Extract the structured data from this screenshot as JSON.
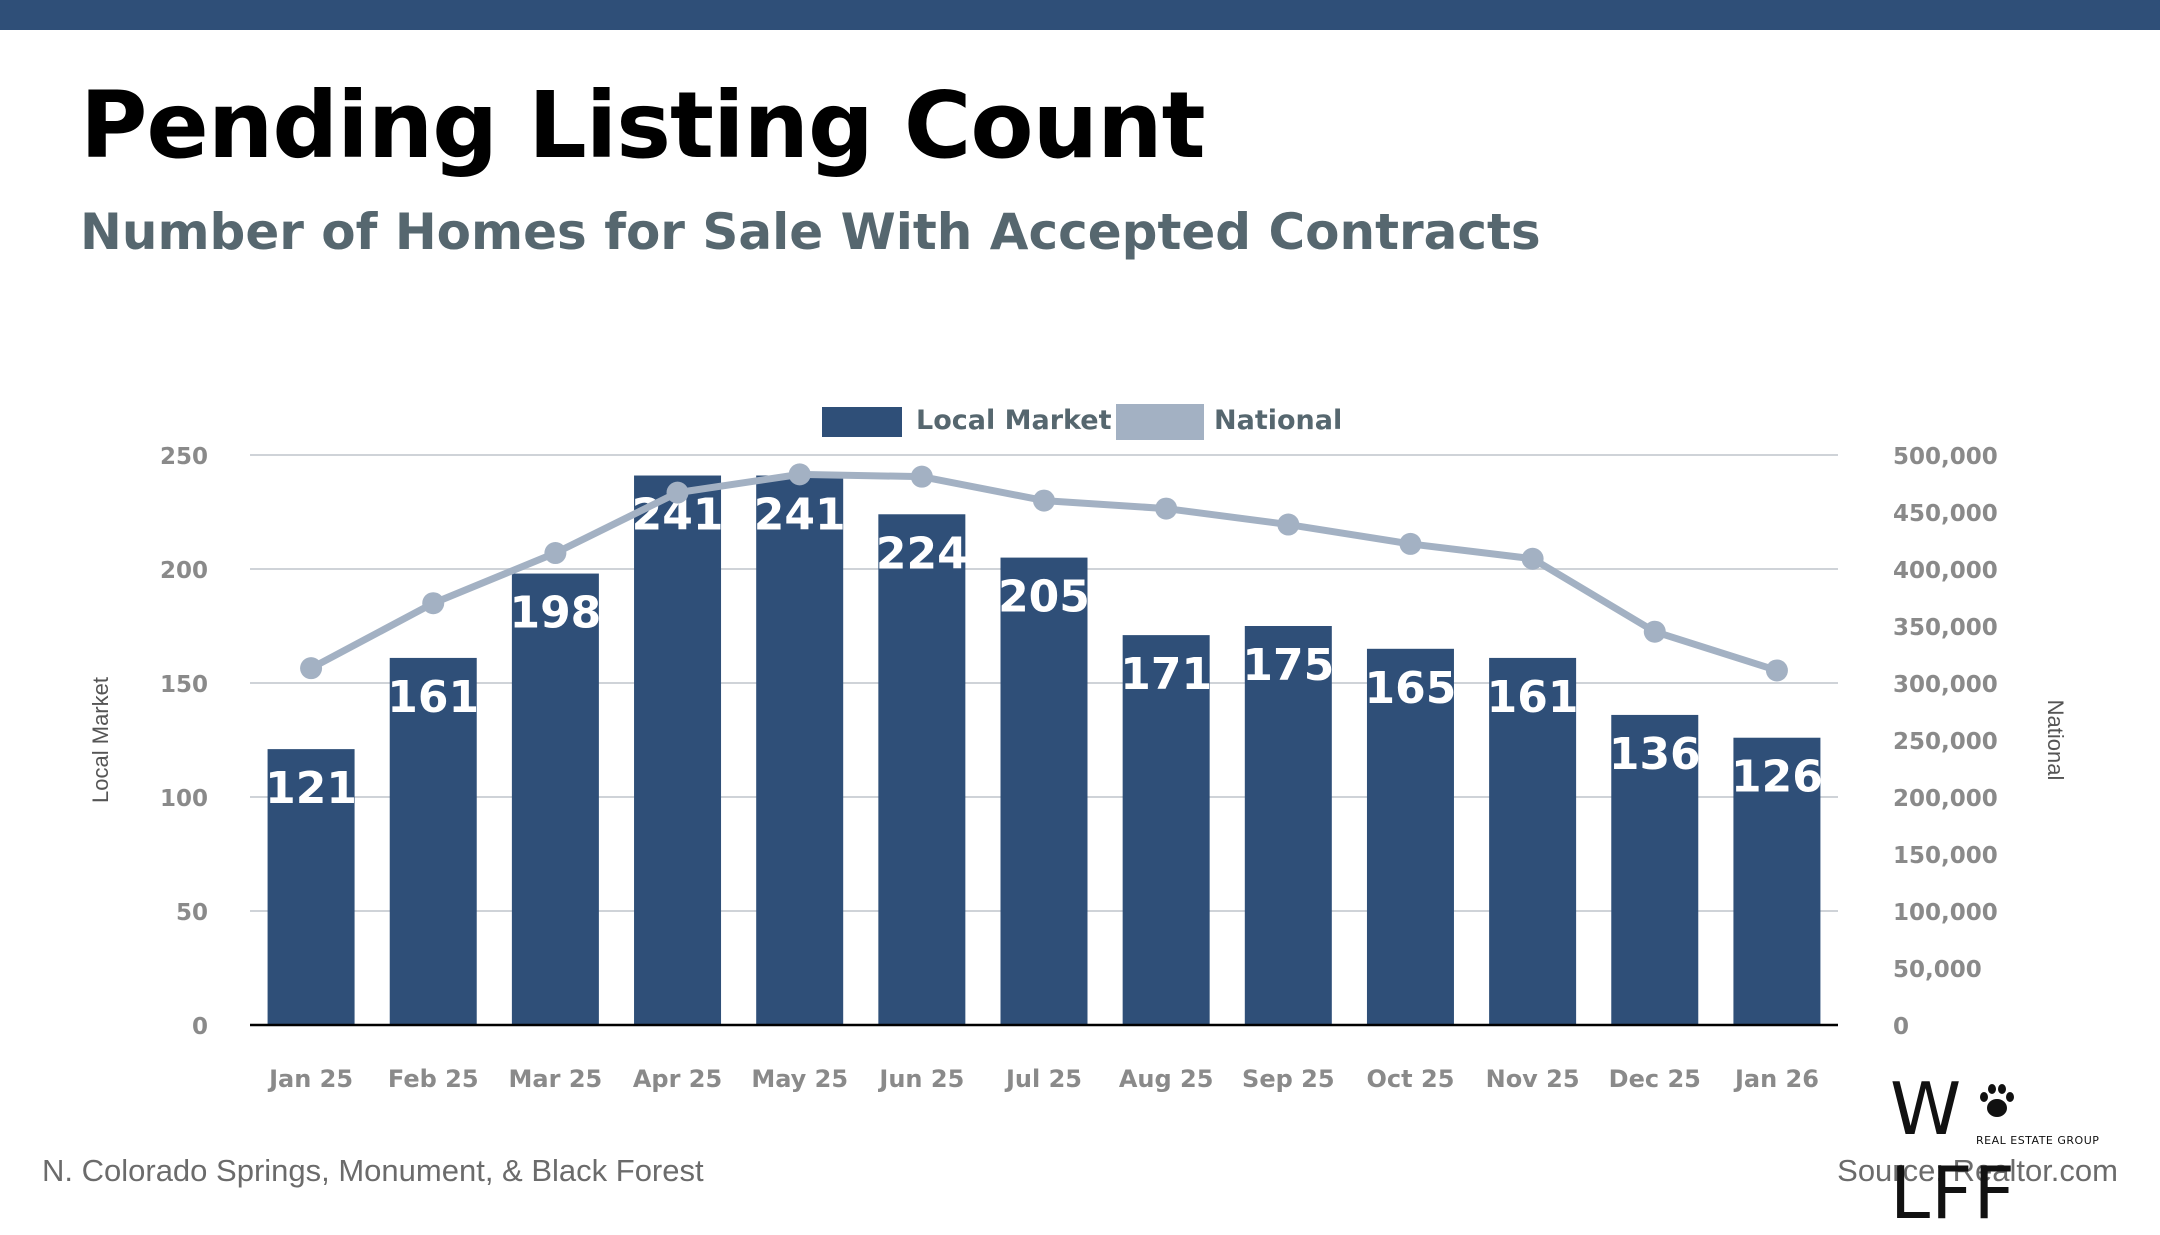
{
  "header": {
    "title": "Pending Listing Count",
    "subtitle": "Number of Homes for Sale With Accepted Contracts"
  },
  "footer": {
    "region": "N. Colorado Springs, Monument, & Black Forest",
    "source": "Source: Realtor.com"
  },
  "logo": {
    "text": "W LFF",
    "tagline": "REAL ESTATE GROUP",
    "icon": "paw-print-icon"
  },
  "colors": {
    "bar": "#2f4f78",
    "line": "#a3b1c3",
    "header_bar": "#2f4f78",
    "subtitle": "#56676f"
  },
  "chart_data": {
    "type": "bar",
    "categories": [
      "Jan 25",
      "Feb 25",
      "Mar 25",
      "Apr 25",
      "May 25",
      "Jun 25",
      "Jul 25",
      "Aug 25",
      "Sep 25",
      "Oct 25",
      "Nov 25",
      "Dec 25",
      "Jan 26"
    ],
    "series": [
      {
        "name": "Local Market",
        "type": "bar",
        "axis": "left",
        "values": [
          121,
          161,
          198,
          241,
          241,
          224,
          205,
          171,
          175,
          165,
          161,
          136,
          126
        ]
      },
      {
        "name": "National",
        "type": "line",
        "axis": "right",
        "values": [
          313000,
          370000,
          414000,
          467000,
          483000,
          481000,
          460000,
          453000,
          439000,
          422000,
          409000,
          345000,
          311000
        ]
      }
    ],
    "ylabel": "Local Market",
    "y2label": "National",
    "ylim": [
      0,
      250
    ],
    "y_ticks": [
      "0",
      "50",
      "100",
      "150",
      "200",
      "250"
    ],
    "y2lim": [
      0,
      500000
    ],
    "y2_ticks": [
      "0",
      "50,000",
      "100,000",
      "150,000",
      "200,000",
      "250,000",
      "300,000",
      "350,000",
      "400,000",
      "450,000",
      "500,000"
    ],
    "legend": "top-center",
    "grid": true
  }
}
